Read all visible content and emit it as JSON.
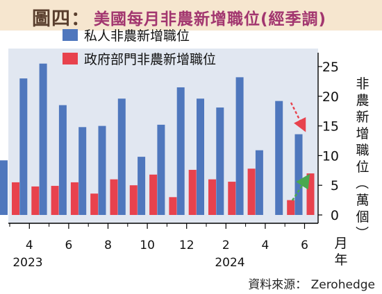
{
  "header": {
    "figure_no": "圖四：",
    "title": "美國每月非農新增職位(經季調)"
  },
  "footer": {
    "source": "資料來源： Zerohedge"
  },
  "chart_data": {
    "type": "bar",
    "ylabel": "非農新增職位（萬個）",
    "xlabel": "月年",
    "ylim": [
      0,
      27
    ],
    "yticks": [
      0,
      5,
      10,
      15,
      20,
      25
    ],
    "categories": [
      "2023-03",
      "2023-04",
      "2023-05",
      "2023-06",
      "2023-07",
      "2023-08",
      "2023-09",
      "2023-10",
      "2023-11",
      "2023-12",
      "2024-01",
      "2024-02",
      "2024-03",
      "2024-04",
      "2024-05",
      "2024-06"
    ],
    "x_tick_labels": [
      "4",
      "6",
      "8",
      "10",
      "12",
      "2",
      "4",
      "6"
    ],
    "year_labels": [
      "2023",
      "2024"
    ],
    "series": [
      {
        "name": "私人非農新增職位",
        "color": "#4f77bd",
        "values": [
          9.2,
          23.0,
          25.5,
          18.5,
          14.8,
          15.0,
          19.6,
          9.8,
          15.2,
          21.5,
          19.6,
          18.1,
          23.2,
          10.9,
          19.2,
          13.6
        ]
      },
      {
        "name": "政府部門非農新增職位",
        "color": "#e8424d",
        "values": [
          5.5,
          4.8,
          4.9,
          5.5,
          3.6,
          6.0,
          5.0,
          6.8,
          3.0,
          7.6,
          6.0,
          5.6,
          7.8,
          null,
          2.5,
          7.0
        ]
      }
    ],
    "grid": false,
    "legend": "top-left",
    "annotations": [
      "red dashed arrow pointing down toward the private bar of 2024-06",
      "green dashed arrow pointing up toward the government bar of 2024-06"
    ]
  }
}
